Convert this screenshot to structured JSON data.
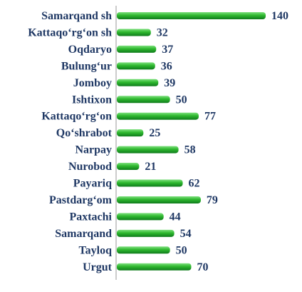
{
  "chart_data": {
    "type": "bar",
    "orientation": "horizontal",
    "categories": [
      "Samarqand sh",
      "Kattaqo‘rg‘on sh",
      "Oqdaryo",
      "Bulung‘ur",
      "Jomboy",
      "Ishtixon",
      "Kattaqo‘rg‘on",
      "Qo‘shrabot",
      "Narpay",
      "Nurobod",
      "Payariq",
      "Pastdarg‘om",
      "Paxtachi",
      "Samarqand",
      "Tayloq",
      "Urgut"
    ],
    "values": [
      140,
      32,
      37,
      36,
      39,
      50,
      77,
      25,
      58,
      21,
      62,
      79,
      44,
      54,
      50,
      70
    ],
    "title": "",
    "xlabel": "",
    "ylabel": "",
    "xlim": [
      0,
      140
    ],
    "grid": false,
    "legend": "none",
    "colors": {
      "bar": "#2eb82e",
      "bar_dark": "#0f7a1c",
      "bar_light": "#7fe07f",
      "label": "#1f3864",
      "axis": "#9a9a9a"
    }
  }
}
